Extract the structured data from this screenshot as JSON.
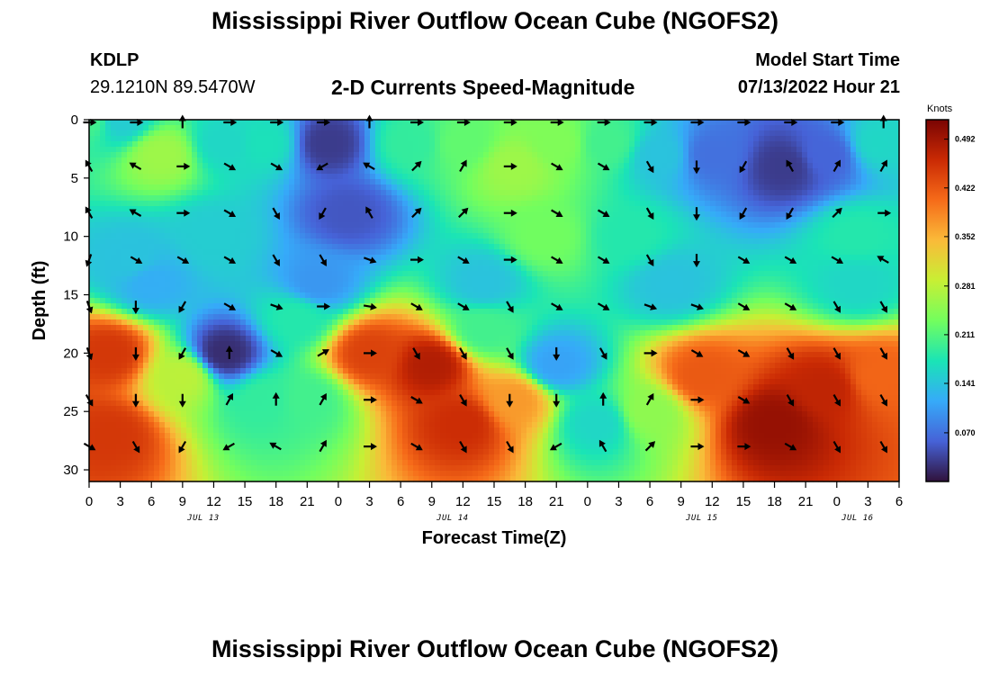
{
  "header": {
    "title": "Mississippi River Outflow Ocean Cube (NGOFS2)",
    "station": "KDLP",
    "coords": "29.1210N  89.5470W",
    "subtitle": "2-D Currents Speed-Magnitude",
    "start_label": "Model Start Time",
    "start_value": "07/13/2022 Hour 21"
  },
  "footer": {
    "title": "Mississippi River Outflow Ocean Cube (NGOFS2)"
  },
  "colors": {
    "arrow": "#000000",
    "colormap": [
      "#30123b",
      "#4662d7",
      "#36aaf9",
      "#1ae4b6",
      "#72fe5e",
      "#c8ef34",
      "#faba39",
      "#f66b19",
      "#ca2a04",
      "#7a0403"
    ]
  },
  "chart_data": {
    "type": "heatmap",
    "title": "2-D Currents Speed-Magnitude",
    "xlabel": "Forecast Time(Z)",
    "ylabel": "Depth (ft)",
    "x_range_hours": [
      0,
      78
    ],
    "ylim": [
      0,
      31
    ],
    "y_inverted": true,
    "y_ticks": [
      0,
      5,
      10,
      15,
      20,
      25,
      30
    ],
    "x_tick_labels": [
      "0",
      "3",
      "6",
      "9",
      "12",
      "15",
      "18",
      "21",
      "0",
      "3",
      "6",
      "9",
      "12",
      "15",
      "18",
      "21",
      "0",
      "3",
      "6",
      "9",
      "12",
      "15",
      "18",
      "21",
      "0",
      "3",
      "6"
    ],
    "date_labels": [
      {
        "text": "JUL 13",
        "hour": 11
      },
      {
        "text": "JUL 14",
        "hour": 35
      },
      {
        "text": "JUL 15",
        "hour": 59
      },
      {
        "text": "JUL 16",
        "hour": 74
      }
    ],
    "colorbar": {
      "units": "Knots",
      "min": 0.0,
      "max": 0.52,
      "tick_values": [
        0.07,
        0.141,
        0.211,
        0.281,
        0.352,
        0.422,
        0.492
      ],
      "tick_labels": [
        "0.070",
        "0.141",
        "0.211",
        "0.281",
        "0.352",
        "0.422",
        "0.492"
      ]
    },
    "speed_field": [
      {
        "hour": 0,
        "depth": 0,
        "speed": 0.2
      },
      {
        "hour": 3,
        "depth": 0,
        "speed": 0.15
      },
      {
        "hour": 7,
        "depth": 3,
        "speed": 0.26
      },
      {
        "hour": 13,
        "depth": 2,
        "speed": 0.16
      },
      {
        "hour": 17,
        "depth": 2,
        "speed": 0.17
      },
      {
        "hour": 23,
        "depth": 2,
        "speed": 0.03
      },
      {
        "hour": 25,
        "depth": 8,
        "speed": 0.05
      },
      {
        "hour": 31,
        "depth": 2,
        "speed": 0.19
      },
      {
        "hour": 36,
        "depth": 2,
        "speed": 0.22
      },
      {
        "hour": 41,
        "depth": 4,
        "speed": 0.26
      },
      {
        "hour": 45,
        "depth": 2,
        "speed": 0.24
      },
      {
        "hour": 50,
        "depth": 2,
        "speed": 0.2
      },
      {
        "hour": 55,
        "depth": 3,
        "speed": 0.14
      },
      {
        "hour": 60,
        "depth": 3,
        "speed": 0.07
      },
      {
        "hour": 67,
        "depth": 4,
        "speed": 0.03
      },
      {
        "hour": 71,
        "depth": 3,
        "speed": 0.06
      },
      {
        "hour": 76,
        "depth": 2,
        "speed": 0.16
      },
      {
        "hour": 4,
        "depth": 12,
        "speed": 0.14
      },
      {
        "hour": 12,
        "depth": 10,
        "speed": 0.15
      },
      {
        "hour": 44,
        "depth": 10,
        "speed": 0.23
      },
      {
        "hour": 52,
        "depth": 10,
        "speed": 0.18
      },
      {
        "hour": 74,
        "depth": 10,
        "speed": 0.18
      },
      {
        "hour": 6,
        "depth": 14,
        "speed": 0.12
      },
      {
        "hour": 22,
        "depth": 14,
        "speed": 0.1
      },
      {
        "hour": 38,
        "depth": 14,
        "speed": 0.14
      },
      {
        "hour": 56,
        "depth": 14,
        "speed": 0.14
      },
      {
        "hour": 74,
        "depth": 14,
        "speed": 0.16
      },
      {
        "hour": 2,
        "depth": 20,
        "speed": 0.45
      },
      {
        "hour": 2,
        "depth": 27,
        "speed": 0.45
      },
      {
        "hour": 9,
        "depth": 22,
        "speed": 0.28
      },
      {
        "hour": 13,
        "depth": 20,
        "speed": 0.02
      },
      {
        "hour": 17,
        "depth": 24,
        "speed": 0.19
      },
      {
        "hour": 21,
        "depth": 24,
        "speed": 0.2
      },
      {
        "hour": 27,
        "depth": 20,
        "speed": 0.44
      },
      {
        "hour": 33,
        "depth": 21,
        "speed": 0.48
      },
      {
        "hour": 36,
        "depth": 26,
        "speed": 0.46
      },
      {
        "hour": 41,
        "depth": 24,
        "speed": 0.37
      },
      {
        "hour": 45,
        "depth": 21,
        "speed": 0.11
      },
      {
        "hour": 49,
        "depth": 26,
        "speed": 0.16
      },
      {
        "hour": 54,
        "depth": 25,
        "speed": 0.25
      },
      {
        "hour": 59,
        "depth": 22,
        "speed": 0.42
      },
      {
        "hour": 66,
        "depth": 26,
        "speed": 0.5
      },
      {
        "hour": 71,
        "depth": 23,
        "speed": 0.47
      },
      {
        "hour": 76,
        "depth": 22,
        "speed": 0.41
      },
      {
        "hour": 20,
        "depth": 17,
        "speed": 0.18
      },
      {
        "hour": 38,
        "depth": 18,
        "speed": 0.2
      }
    ],
    "vector_hours": [
      0,
      4.5,
      9,
      13.5,
      18,
      22.5,
      27,
      31.5,
      36,
      40.5,
      45,
      49.5,
      54,
      58.5,
      63,
      67.5,
      72,
      76.5
    ],
    "vector_depths": [
      0,
      4,
      8,
      12,
      16,
      20,
      24,
      28
    ],
    "vector_directions_deg": [
      [
        90,
        90,
        0,
        90,
        90,
        90,
        0,
        90,
        90,
        90,
        90,
        90,
        90,
        90,
        90,
        90,
        90,
        0
      ],
      [
        330,
        300,
        90,
        120,
        120,
        240,
        300,
        45,
        30,
        90,
        120,
        120,
        150,
        180,
        210,
        330,
        30,
        30
      ],
      [
        330,
        300,
        90,
        120,
        150,
        210,
        330,
        45,
        45,
        90,
        120,
        120,
        150,
        180,
        210,
        210,
        45,
        90
      ],
      [
        200,
        120,
        120,
        120,
        150,
        150,
        110,
        90,
        120,
        90,
        120,
        120,
        150,
        180,
        120,
        120,
        120,
        300
      ],
      [
        160,
        180,
        210,
        120,
        110,
        90,
        100,
        120,
        120,
        150,
        120,
        120,
        110,
        110,
        120,
        120,
        150,
        150
      ],
      [
        160,
        180,
        210,
        0,
        120,
        60,
        90,
        150,
        150,
        150,
        180,
        150,
        90,
        120,
        120,
        150,
        150,
        150
      ],
      [
        150,
        180,
        180,
        30,
        0,
        30,
        90,
        120,
        150,
        180,
        180,
        0,
        30,
        90,
        120,
        150,
        150,
        150
      ],
      [
        120,
        150,
        210,
        240,
        300,
        30,
        90,
        120,
        150,
        150,
        240,
        330,
        45,
        90,
        90,
        120,
        150,
        150
      ]
    ]
  }
}
